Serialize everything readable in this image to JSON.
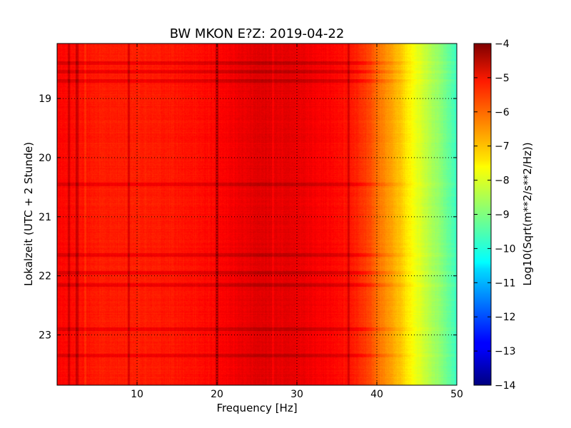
{
  "chart_data": {
    "type": "heatmap",
    "title": "BW MKON E?Z: 2019-04-22",
    "xlabel": "Frequency [Hz]",
    "ylabel": "Lokalzeit (UTC + 2 Stunde)",
    "xlim": [
      0,
      50
    ],
    "ylim": [
      23.85,
      18.07
    ],
    "x_ticks": [
      10,
      20,
      30,
      40,
      50
    ],
    "y_ticks": [
      19,
      20,
      21,
      22,
      23
    ],
    "grid": true,
    "colormap": "jet",
    "colorbar": {
      "label": "Log10(Sqrt(m**2/s**2/Hz))",
      "range": [
        -14,
        -4
      ],
      "ticks": [
        -4,
        -5,
        -6,
        -7,
        -8,
        -9,
        -10,
        -11,
        -12,
        -13,
        -14
      ]
    },
    "frequency_profile": {
      "frequency_hz": [
        0,
        2,
        5,
        10,
        15,
        20,
        25,
        30,
        35,
        37,
        38,
        39,
        40,
        41,
        42,
        43,
        44,
        45,
        46,
        47,
        48,
        49,
        50
      ],
      "log10_amplitude": [
        -5.3,
        -5.35,
        -5.5,
        -5.55,
        -5.45,
        -5.3,
        -4.95,
        -5.05,
        -5.3,
        -5.5,
        -5.7,
        -5.95,
        -6.3,
        -6.6,
        -6.9,
        -7.2,
        -7.6,
        -7.95,
        -8.3,
        -8.6,
        -8.9,
        -9.3,
        -9.7
      ]
    },
    "dark_lines_hz": [
      1.5,
      2.5,
      9,
      20,
      36.5
    ],
    "bright_lines_hz": [
      3.5,
      27
    ],
    "dark_rows_hour": [
      18.4,
      18.55,
      18.7,
      20.45,
      21.65,
      21.95,
      22.15,
      22.9,
      23.35
    ]
  }
}
